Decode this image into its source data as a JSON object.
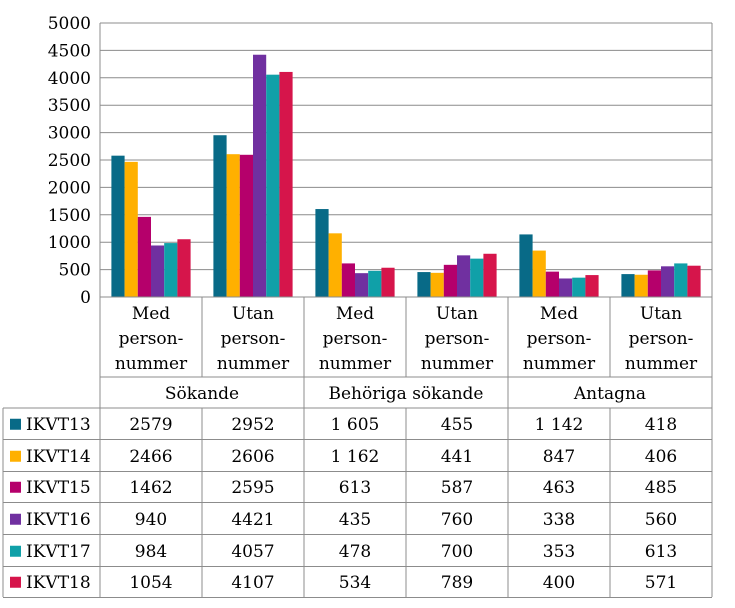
{
  "chart_data": {
    "type": "bar",
    "title": "",
    "xlabel": "",
    "ylabel": "",
    "ylim": [
      0,
      5000
    ],
    "yticks": [
      "5000",
      "4500",
      "4000",
      "3500",
      "3000",
      "2500",
      "2000",
      "1500",
      "1000",
      "500",
      "0"
    ],
    "ytick_values": [
      5000,
      4500,
      4000,
      3500,
      3000,
      2500,
      2000,
      1500,
      1000,
      500,
      0
    ],
    "grid": true,
    "legend": "table-left",
    "groups": [
      "Sökande",
      "Behöriga sökande",
      "Antagna"
    ],
    "categories": [
      {
        "lines": [
          "Med",
          "person-",
          "nummer"
        ]
      },
      {
        "lines": [
          "Utan",
          "person-",
          "nummer"
        ]
      },
      {
        "lines": [
          "Med",
          "person-",
          "nummer"
        ]
      },
      {
        "lines": [
          "Utan",
          "person-",
          "nummer"
        ]
      },
      {
        "lines": [
          "Med",
          "person-",
          "nummer"
        ]
      },
      {
        "lines": [
          "Utan",
          "person-",
          "nummer"
        ]
      }
    ],
    "series": [
      {
        "name": "IKVT13",
        "color": "#086a87",
        "values": [
          2579,
          2952,
          1605,
          455,
          1142,
          418
        ],
        "labels": [
          "2579",
          "2952",
          "1 605",
          "455",
          "1 142",
          "418"
        ]
      },
      {
        "name": "IKVT14",
        "color": "#ffb000",
        "values": [
          2466,
          2606,
          1162,
          441,
          847,
          406
        ],
        "labels": [
          "2466",
          "2606",
          "1 162",
          "441",
          "847",
          "406"
        ]
      },
      {
        "name": "IKVT15",
        "color": "#b5006b",
        "values": [
          1462,
          2595,
          613,
          587,
          463,
          485
        ],
        "labels": [
          "1462",
          "2595",
          "613",
          "587",
          "463",
          "485"
        ]
      },
      {
        "name": "IKVT16",
        "color": "#7030a0",
        "values": [
          940,
          4421,
          435,
          760,
          338,
          560
        ],
        "labels": [
          "940",
          "4421",
          "435",
          "760",
          "338",
          "560"
        ]
      },
      {
        "name": "IKVT17",
        "color": "#10a0a8",
        "values": [
          984,
          4057,
          478,
          700,
          353,
          613
        ],
        "labels": [
          "984",
          "4057",
          "478",
          "700",
          "353",
          "613"
        ]
      },
      {
        "name": "IKVT18",
        "color": "#d6154b",
        "values": [
          1054,
          4107,
          534,
          789,
          400,
          571
        ],
        "labels": [
          "1054",
          "4107",
          "534",
          "789",
          "400",
          "571"
        ]
      }
    ]
  }
}
